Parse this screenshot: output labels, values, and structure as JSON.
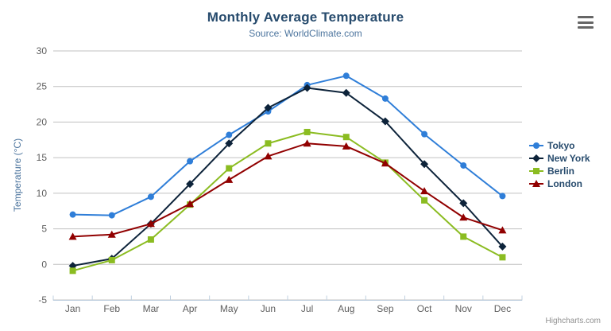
{
  "header": {
    "title": "Monthly Average Temperature",
    "subtitle": "Source: WorldClimate.com"
  },
  "icons": {
    "export_menu": "hamburger-icon"
  },
  "credits": {
    "label": "Highcharts.com"
  },
  "chart_data": {
    "type": "line",
    "title": "Monthly Average Temperature",
    "subtitle": "Source: WorldClimate.com",
    "xlabel": "",
    "ylabel": "Temperature (°C)",
    "categories": [
      "Jan",
      "Feb",
      "Mar",
      "Apr",
      "May",
      "Jun",
      "Jul",
      "Aug",
      "Sep",
      "Oct",
      "Nov",
      "Dec"
    ],
    "ylim": [
      -5,
      30
    ],
    "ytick_step": 5,
    "yticks": [
      -5,
      0,
      5,
      10,
      15,
      20,
      25,
      30
    ],
    "grid": true,
    "legend_position": "right",
    "series": [
      {
        "name": "Tokyo",
        "color": "#2f7ed8",
        "marker": "circle",
        "values": [
          7.0,
          6.9,
          9.5,
          14.5,
          18.2,
          21.5,
          25.2,
          26.5,
          23.3,
          18.3,
          13.9,
          9.6
        ]
      },
      {
        "name": "New York",
        "color": "#0d233a",
        "marker": "diamond",
        "values": [
          -0.2,
          0.8,
          5.7,
          11.3,
          17.0,
          22.0,
          24.8,
          24.1,
          20.1,
          14.1,
          8.6,
          2.5
        ]
      },
      {
        "name": "Berlin",
        "color": "#8bbc21",
        "marker": "square",
        "values": [
          -0.9,
          0.6,
          3.5,
          8.4,
          13.5,
          17.0,
          18.6,
          17.9,
          14.3,
          9.0,
          3.9,
          1.0
        ]
      },
      {
        "name": "London",
        "color": "#910000",
        "marker": "triangle",
        "values": [
          3.9,
          4.2,
          5.7,
          8.5,
          11.9,
          15.2,
          17.0,
          16.6,
          14.2,
          10.3,
          6.6,
          4.8
        ]
      }
    ],
    "axis_colors": {
      "grid_line": "#c0c0c0",
      "axis_line": "#c0d0e0",
      "tick": "#c0d0e0",
      "label": "#606060"
    }
  }
}
